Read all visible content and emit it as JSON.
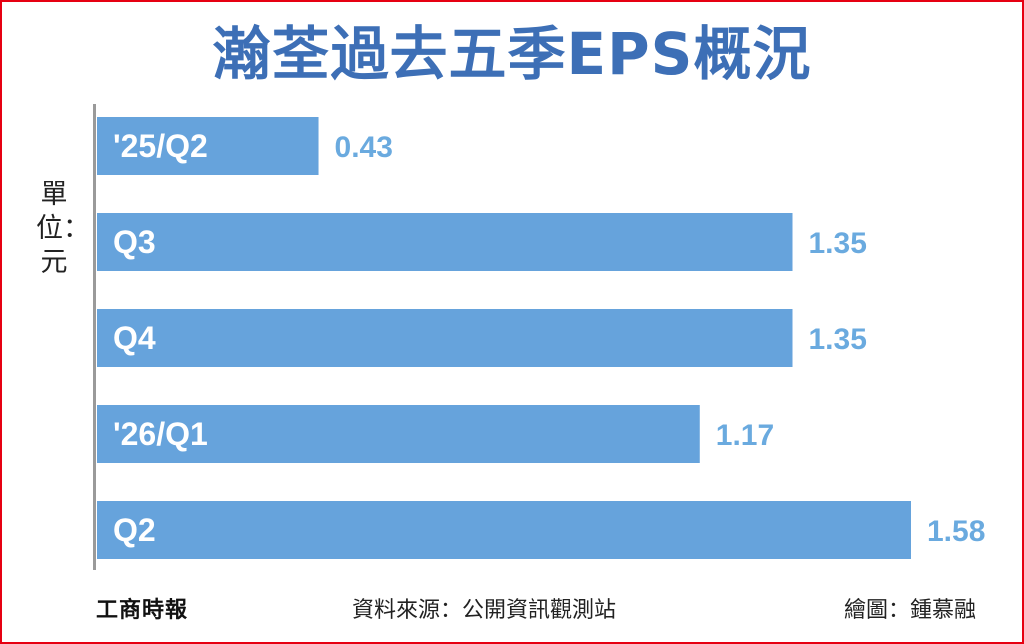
{
  "title": "瀚荃過去五季EPS概況",
  "unit_label": "單位：元",
  "footer": {
    "logo": "工商時報",
    "source": "資料來源：公開資訊觀測站",
    "credit": "繪圖：鍾慕融"
  },
  "colors": {
    "bar": "#66a3dc",
    "value_label": "#6aaadf",
    "category_label": "#ffffff",
    "title": "#3d6fb6",
    "frame": "#e60012"
  },
  "chart_data": {
    "type": "bar",
    "orientation": "horizontal",
    "categories": [
      "'25/Q2",
      "Q3",
      "Q4",
      "'26/Q1",
      "Q2"
    ],
    "values": [
      0.43,
      1.35,
      1.35,
      1.17,
      1.58
    ],
    "value_labels": [
      "0.43",
      "1.35",
      "1.35",
      "1.17",
      "1.58"
    ],
    "title": "瀚荃過去五季EPS概況",
    "xlabel": "",
    "ylabel": "單位：元",
    "xlim": [
      0,
      1.6
    ],
    "grid": false
  }
}
